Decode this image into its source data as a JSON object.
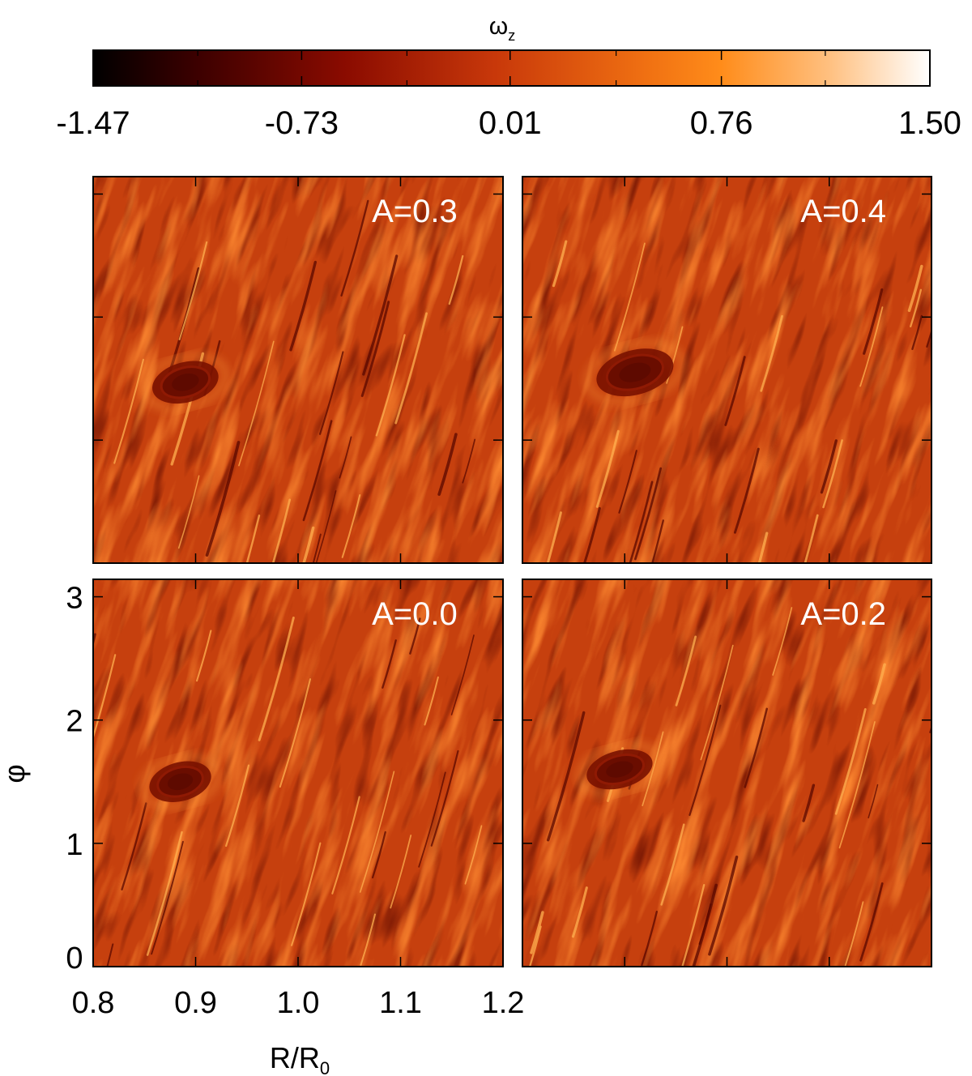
{
  "chart_data": {
    "type": "heatmap",
    "colorbar": {
      "label": "ω",
      "label_sub": "z",
      "ticks": [
        -1.47,
        -0.73,
        0.01,
        0.76,
        1.5
      ],
      "tick_labels": [
        "-1.47",
        "-0.73",
        "0.01",
        "0.76",
        "1.50"
      ],
      "range": [
        -1.47,
        1.5
      ],
      "colormap": [
        "#000000",
        "#3a0000",
        "#8a0b00",
        "#c8380a",
        "#f07012",
        "#ff8c1a",
        "#ffc080",
        "#ffffff"
      ]
    },
    "xlabel": "R/R",
    "xlabel_sub": "0",
    "ylabel": "φ",
    "xlim": [
      0.8,
      1.2
    ],
    "ylim": [
      0,
      3.14159
    ],
    "xticks": [
      0.8,
      0.9,
      1.0,
      1.1,
      1.2
    ],
    "xtick_labels": [
      "0.8",
      "0.9",
      "1.0",
      "1.1",
      "1.2"
    ],
    "yticks": [
      0,
      1,
      2,
      3
    ],
    "ytick_labels": [
      "0",
      "1",
      "2",
      "3"
    ],
    "panels": [
      {
        "label": "A=0.3",
        "vortex_center": [
          0.89,
          1.47
        ],
        "vortex_radius": [
          0.03,
          0.27
        ]
      },
      {
        "label": "A=0.4",
        "vortex_center": [
          0.91,
          1.55
        ],
        "vortex_radius": [
          0.035,
          0.3
        ]
      },
      {
        "label": "A=0.0",
        "vortex_center": [
          0.885,
          1.5
        ],
        "vortex_radius": [
          0.028,
          0.26
        ]
      },
      {
        "label": "A=0.2",
        "vortex_center": [
          0.895,
          1.6
        ],
        "vortex_radius": [
          0.03,
          0.25
        ]
      }
    ]
  }
}
